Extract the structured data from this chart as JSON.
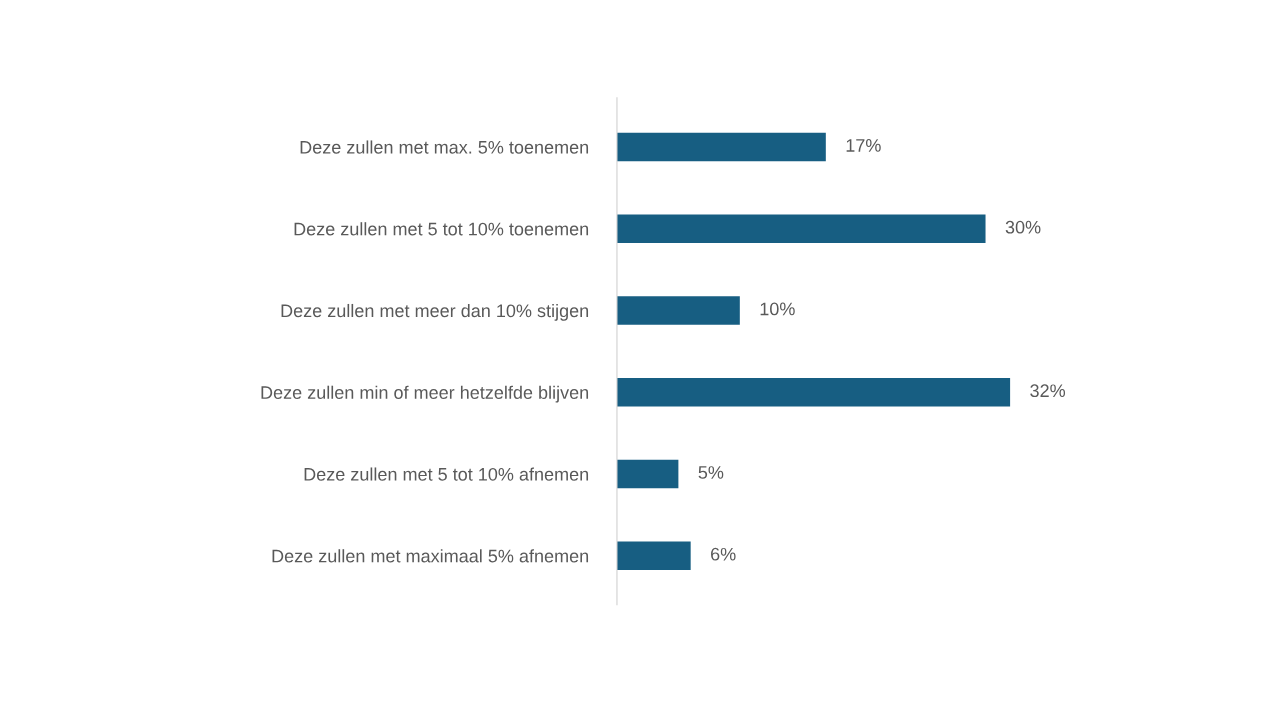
{
  "chart_data": {
    "type": "bar",
    "orientation": "horizontal",
    "categories": [
      "Deze zullen met max. 5% toenemen",
      "Deze zullen met 5 tot 10% toenemen",
      "Deze zullen met meer dan 10% stijgen",
      "Deze zullen min of meer hetzelfde blijven",
      "Deze zullen met 5 tot 10% afnemen",
      "Deze zullen met maximaal 5% afnemen"
    ],
    "values": [
      17,
      30,
      10,
      32,
      5,
      6
    ],
    "value_labels": [
      "17%",
      "30%",
      "10%",
      "32%",
      "5%",
      "6%"
    ],
    "color": "#175e82"
  }
}
